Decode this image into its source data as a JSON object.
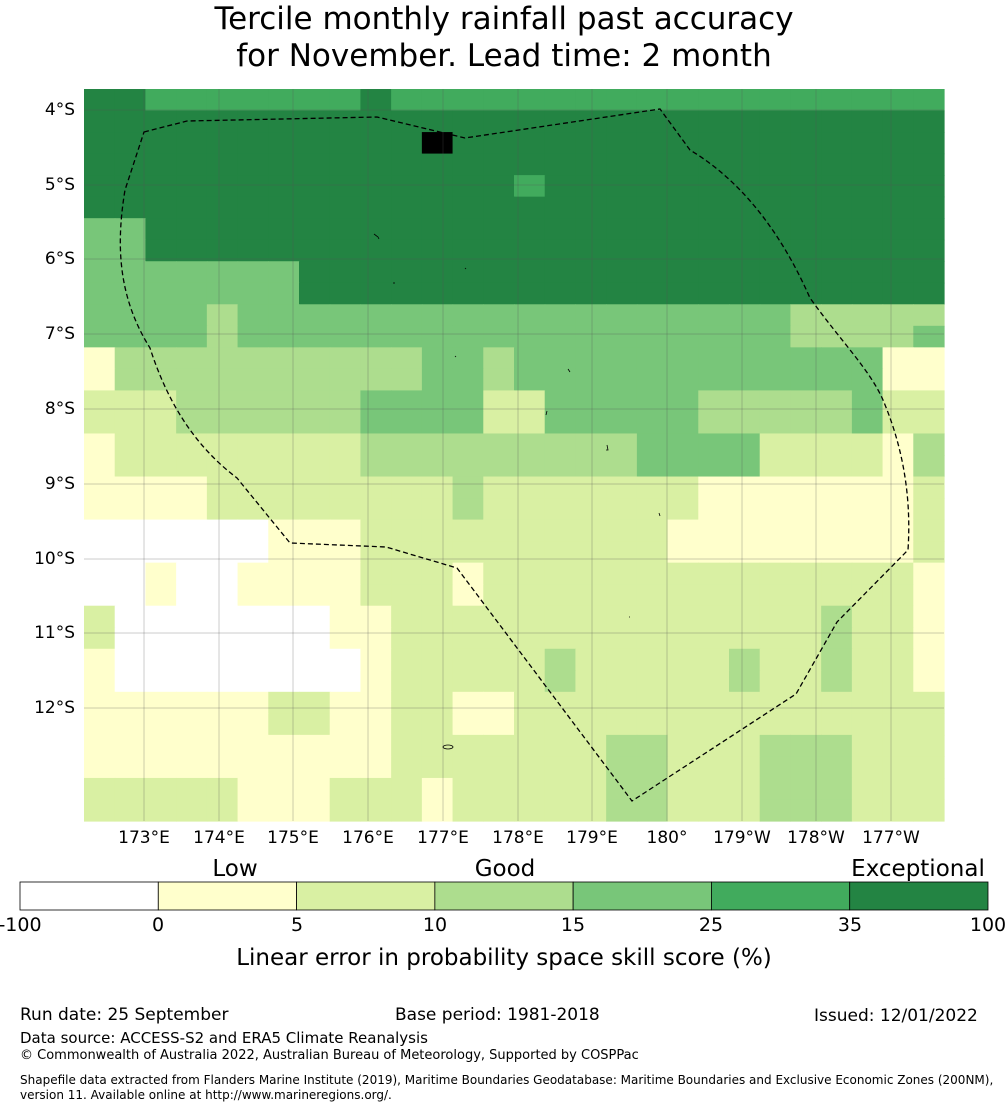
{
  "title": {
    "line1": "Tercile monthly rainfall past accuracy",
    "line2": "for November. Lead time: 2 month"
  },
  "map": {
    "lat_labels": [
      "4°S",
      "5°S",
      "6°S",
      "7°S",
      "8°S",
      "9°S",
      "10°S",
      "11°S",
      "12°S"
    ],
    "lon_labels": [
      "173°E",
      "174°E",
      "175°E",
      "176°E",
      "177°E",
      "178°E",
      "179°E",
      "180°",
      "179°W",
      "178°W",
      "177°W"
    ],
    "grid_rows": [
      "6655555556555555555555555555",
      "6666666666666666666666666666",
      "6666666666676666666666666666",
      "6666666666666666666666666666",
      "6666666666666656666666666666",
      "6666666666666666666666666666",
      "4466666666666666666666666666",
      "4466666666666666666666666666",
      "4444444666666666666666666666",
      "4444444666666666666666666666",
      "4444344444444444444444433333",
      "4444344444444444444444433334",
      "1333333333344344444444444411",
      "1333333333344344444444444411",
      "2223333334444224444433333422",
      "2223333334444224444433333422",
      "1222222223333333334444222213",
      "1222222223333333334444222213",
      "1111222222223222222211111112",
      "1111222222223222222211111112",
      "0000001112222222222111111112",
      "0000001112222222222111111112",
      "0010011112221222222222222221",
      "0010011112221222222222222221",
      "2000000011222222222222223221",
      "2000000011222222222222223221",
      "1000000001222223222223223221",
      "1000000001222223222223223221",
      "1111112211221122222222222222",
      "1111112211221122222222222222",
      "1111111111222222233222333222",
      "1111111111222222233222333222",
      "2222211122212222233222333222",
      "2222211122212222233222333222"
    ],
    "boundary_color": "#000000"
  },
  "colorbar": {
    "category_labels": [
      "Low",
      "Good",
      "Exceptional"
    ],
    "ticks": [
      "-100",
      "0",
      "5",
      "10",
      "15",
      "25",
      "35",
      "100"
    ],
    "colors": [
      "#ffffff",
      "#ffffcc",
      "#d9f0a3",
      "#addd8e",
      "#78c679",
      "#41ab5d",
      "#238443"
    ],
    "title": "Linear error in probability space skill score (%)"
  },
  "footer": {
    "run_date": "Run date: 25 September",
    "base_period": "Base period: 1981-2018",
    "issued": "Issued: 12/01/2022",
    "data_source": "Data source: ACCESS-S2 and ERA5 Climate Reanalysis",
    "copyright": "© Commonwealth of Australia 2022, Australian Bureau of Meteorology, Supported by COSPPac",
    "shapefile_line1": "Shapefile data extracted from Flanders Marine Institute (2019), Maritime Boundaries Geodatabase: Maritime Boundaries and Exclusive Economic Zones (200NM),",
    "shapefile_line2": "version 11. Available online at http://www.marineregions.org/."
  }
}
